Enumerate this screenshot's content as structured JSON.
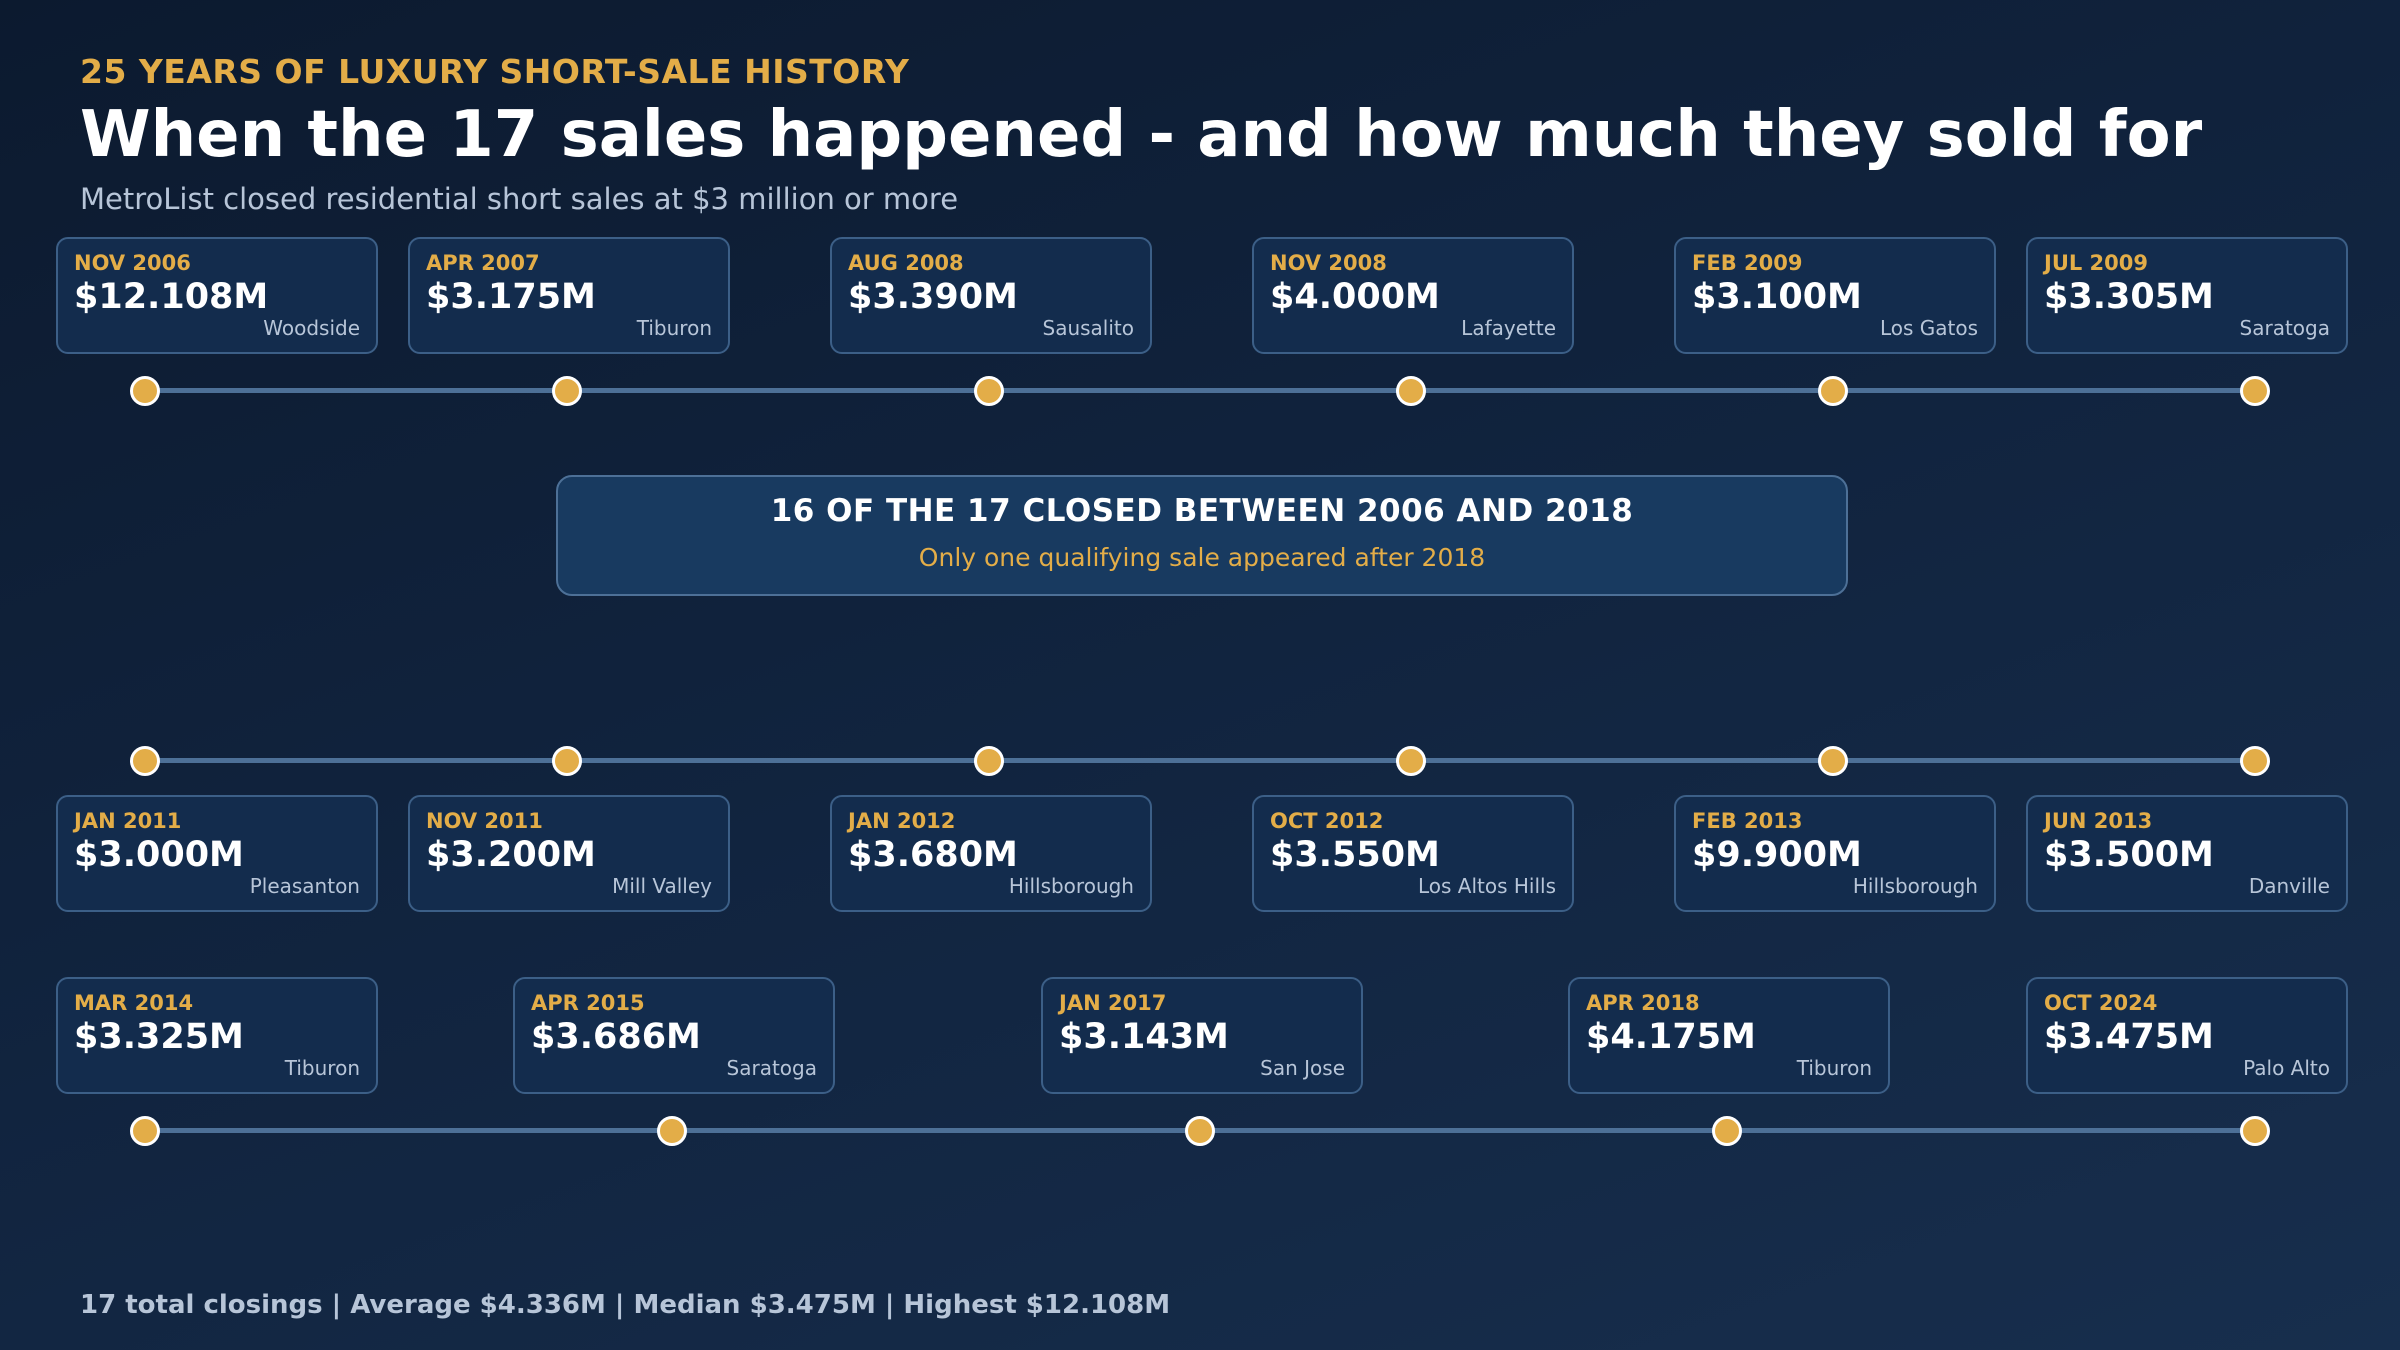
{
  "header": {
    "eyebrow": "25 YEARS OF LUXURY SHORT-SALE HISTORY",
    "title": "When the 17 sales happened - and how much they sold for",
    "subtitle": "MetroList closed residential short sales at $3 million or more"
  },
  "colors": {
    "accent": "#e3ad48",
    "background": "#0c1a2f",
    "card": "#132c4d",
    "timeline": "#4d7097"
  },
  "sales": [
    {
      "date": "NOV 2006",
      "price": "$12.108M",
      "city": "Woodside"
    },
    {
      "date": "APR 2007",
      "price": "$3.175M",
      "city": "Tiburon"
    },
    {
      "date": "AUG 2008",
      "price": "$3.390M",
      "city": "Sausalito"
    },
    {
      "date": "NOV 2008",
      "price": "$4.000M",
      "city": "Lafayette"
    },
    {
      "date": "FEB 2009",
      "price": "$3.100M",
      "city": "Los Gatos"
    },
    {
      "date": "JUL 2009",
      "price": "$3.305M",
      "city": "Saratoga"
    },
    {
      "date": "JAN 2011",
      "price": "$3.000M",
      "city": "Pleasanton"
    },
    {
      "date": "NOV 2011",
      "price": "$3.200M",
      "city": "Mill Valley"
    },
    {
      "date": "JAN 2012",
      "price": "$3.680M",
      "city": "Hillsborough"
    },
    {
      "date": "OCT 2012",
      "price": "$3.550M",
      "city": "Los Altos Hills"
    },
    {
      "date": "FEB 2013",
      "price": "$9.900M",
      "city": "Hillsborough"
    },
    {
      "date": "JUN 2013",
      "price": "$3.500M",
      "city": "Danville"
    },
    {
      "date": "MAR 2014",
      "price": "$3.325M",
      "city": "Tiburon"
    },
    {
      "date": "APR 2015",
      "price": "$3.686M",
      "city": "Saratoga"
    },
    {
      "date": "JAN 2017",
      "price": "$3.143M",
      "city": "San Jose"
    },
    {
      "date": "APR 2018",
      "price": "$4.175M",
      "city": "Tiburon"
    },
    {
      "date": "OCT 2024",
      "price": "$3.475M",
      "city": "Palo Alto"
    }
  ],
  "callout": {
    "title": "16 OF THE 17 CLOSED BETWEEN 2006 AND 2018",
    "subtitle": "Only one qualifying sale appeared after 2018"
  },
  "footer": "17 total closings | Average $4.336M | Median $3.475M | Highest $12.108M"
}
